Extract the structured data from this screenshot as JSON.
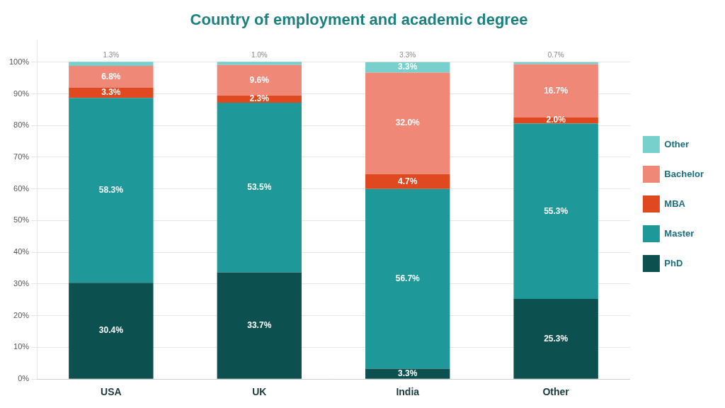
{
  "chart_data": {
    "type": "bar",
    "title": "Country of employment and academic degree",
    "categories": [
      "USA",
      "UK",
      "India",
      "Other"
    ],
    "stacked": true,
    "data_labels": true,
    "grid": true,
    "legend": "right",
    "ylim": [
      0,
      107
    ],
    "yticks": [
      {
        "value": 0,
        "label": "0%"
      },
      {
        "value": 10,
        "label": "10%"
      },
      {
        "value": 20,
        "label": "20%"
      },
      {
        "value": 30,
        "label": "30%"
      },
      {
        "value": 40,
        "label": "40%"
      },
      {
        "value": 50,
        "label": "50%"
      },
      {
        "value": 60,
        "label": "60%"
      },
      {
        "value": 70,
        "label": "70%"
      },
      {
        "value": 80,
        "label": "80%"
      },
      {
        "value": 90,
        "label": "90%"
      },
      {
        "value": 100,
        "label": "100%"
      }
    ],
    "series": [
      {
        "name": "PhD",
        "color": "#0d5050",
        "values": [
          30.4,
          33.7,
          3.3,
          25.3
        ],
        "value_labels": [
          "30.4%",
          "33.7%",
          "3.3%",
          "25.3%"
        ]
      },
      {
        "name": "Master",
        "color": "#1e9898",
        "values": [
          58.3,
          53.5,
          56.7,
          55.3
        ],
        "value_labels": [
          "58.3%",
          "53.5%",
          "56.7%",
          "55.3%"
        ]
      },
      {
        "name": "MBA",
        "color": "#e04820",
        "values": [
          3.3,
          2.3,
          4.7,
          2.0
        ],
        "value_labels": [
          "3.3%",
          "2.3%",
          "4.7%",
          "2.0%"
        ]
      },
      {
        "name": "Bachelor",
        "color": "#f08878",
        "values": [
          6.8,
          9.6,
          32.0,
          16.7
        ],
        "value_labels": [
          "6.8%",
          "9.6%",
          "32.0%",
          "16.7%"
        ]
      },
      {
        "name": "Other",
        "color": "#78d0cc",
        "values": [
          1.3,
          1.0,
          3.3,
          0.7
        ],
        "value_labels": [
          null,
          null,
          "3.3%",
          null
        ],
        "top_labels": [
          "1.3%",
          "1.0%",
          "3.3%",
          "0.7%"
        ]
      }
    ]
  }
}
